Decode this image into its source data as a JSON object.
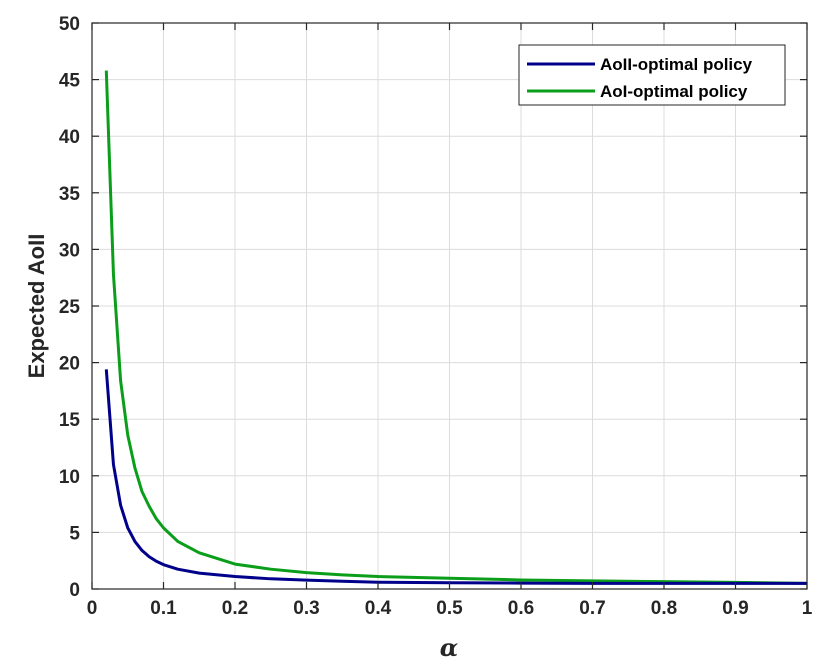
{
  "chart_data": {
    "type": "line",
    "title": "",
    "xlabel": "α",
    "ylabel": "Expected AoII",
    "xlim": [
      0,
      1
    ],
    "ylim": [
      0,
      50
    ],
    "xticks": [
      "0",
      "0.1",
      "0.2",
      "0.3",
      "0.4",
      "0.5",
      "0.6",
      "0.7",
      "0.8",
      "0.9",
      "1"
    ],
    "yticks": [
      "0",
      "5",
      "10",
      "15",
      "20",
      "25",
      "30",
      "35",
      "40",
      "45",
      "50"
    ],
    "grid": true,
    "legend_position": "top-right",
    "series": [
      {
        "name": "AoII-optimal policy",
        "color": "#00008B",
        "x": [
          0.02,
          0.03,
          0.04,
          0.05,
          0.06,
          0.07,
          0.08,
          0.09,
          0.1,
          0.12,
          0.15,
          0.2,
          0.25,
          0.3,
          0.35,
          0.4,
          0.5,
          0.6,
          0.7,
          0.8,
          0.9,
          1.0
        ],
        "y": [
          19.4,
          11.0,
          7.4,
          5.4,
          4.2,
          3.4,
          2.85,
          2.45,
          2.15,
          1.75,
          1.4,
          1.1,
          0.9,
          0.78,
          0.68,
          0.6,
          0.55,
          0.52,
          0.5,
          0.5,
          0.5,
          0.5
        ]
      },
      {
        "name": "AoI-optimal policy",
        "color": "#0B9E1A",
        "x": [
          0.02,
          0.03,
          0.04,
          0.05,
          0.06,
          0.07,
          0.08,
          0.09,
          0.1,
          0.12,
          0.15,
          0.2,
          0.25,
          0.3,
          0.35,
          0.4,
          0.5,
          0.6,
          0.7,
          0.8,
          0.9,
          1.0
        ],
        "y": [
          45.8,
          27.8,
          18.4,
          13.6,
          10.7,
          8.6,
          7.3,
          6.2,
          5.4,
          4.2,
          3.2,
          2.2,
          1.75,
          1.45,
          1.25,
          1.1,
          0.95,
          0.8,
          0.72,
          0.65,
          0.58,
          0.5
        ]
      }
    ]
  }
}
